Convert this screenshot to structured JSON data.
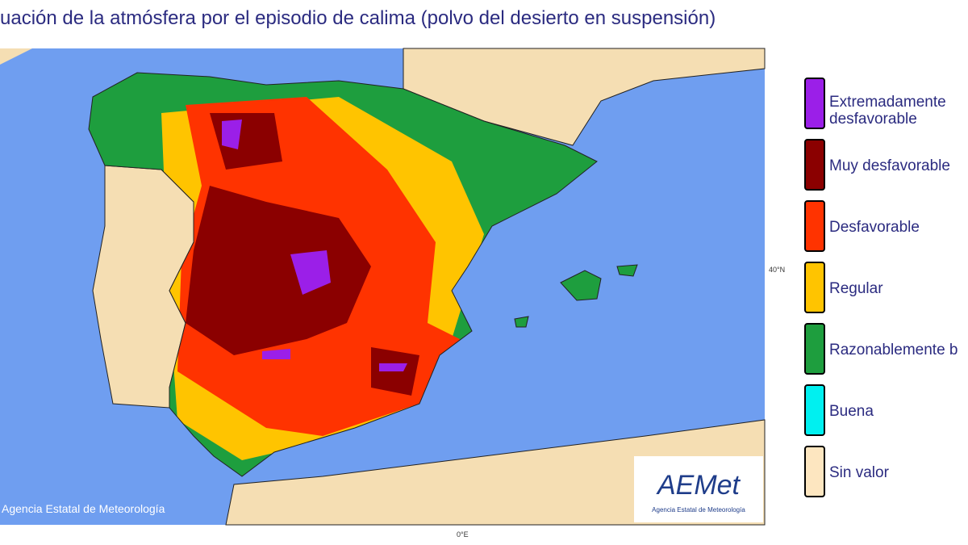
{
  "header": {
    "title": "uación de la atmósfera por el episodio de calima (polvo del desierto en suspensión)"
  },
  "map": {
    "lat_label": "40°N",
    "lon_label": "0°E",
    "credit": "Agencia Estatal de Meteorología",
    "logo": {
      "name": "AEMet",
      "subtitle": "Agencia Estatal de Meteorología"
    }
  },
  "legend": {
    "items": [
      {
        "label": "Extremadamente desfavorable",
        "color": "#9b1fe8"
      },
      {
        "label": "Muy desfavorable",
        "color": "#8b0000"
      },
      {
        "label": "Desfavorable",
        "color": "#ff3300"
      },
      {
        "label": "Regular",
        "color": "#ffc400"
      },
      {
        "label": "Razonablemente b",
        "color": "#1e9e3e"
      },
      {
        "label": "Buena",
        "color": "#00f0f0"
      },
      {
        "label": "Sin valor",
        "color": "#fde6c0"
      }
    ]
  }
}
